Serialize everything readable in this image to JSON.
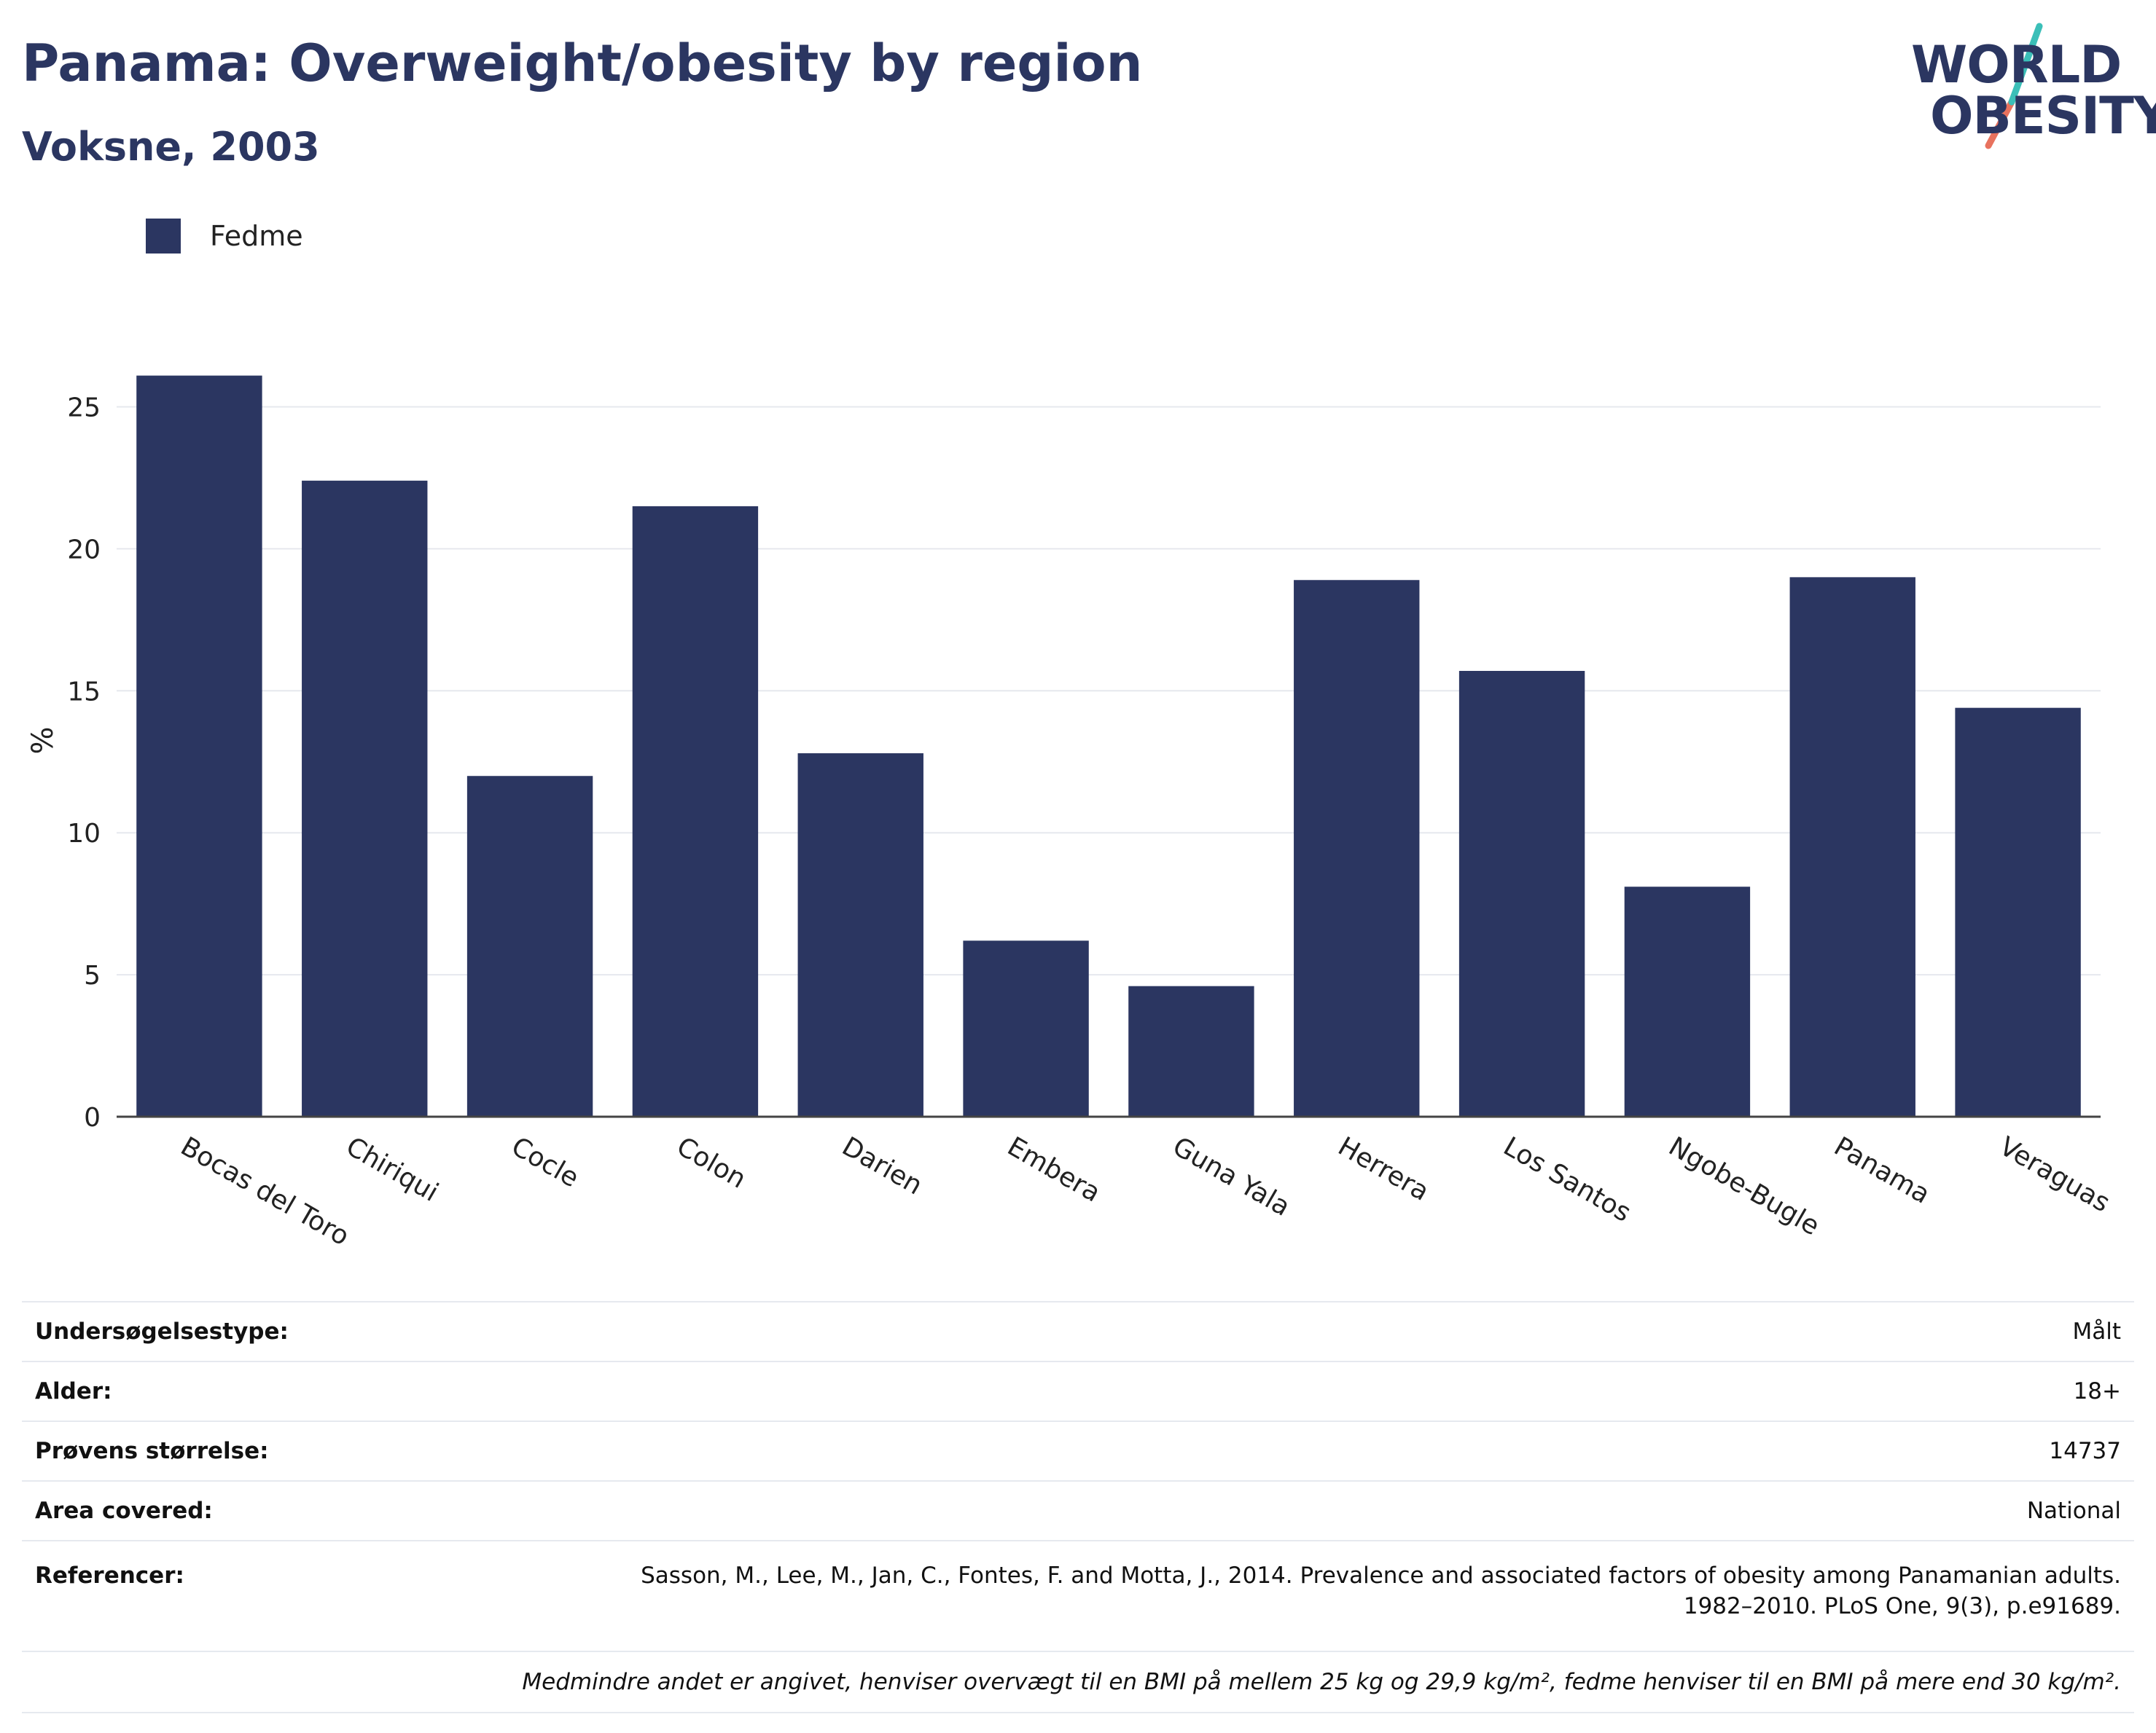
{
  "header": {
    "title": "Panama: Overweight/obesity by region",
    "subtitle": "Voksne, 2003"
  },
  "logo": {
    "line1": "WORLD",
    "line2": "OBESITY",
    "colors": {
      "text": "#2b3661",
      "slash_top": "#3bbfb8",
      "slash_bottom": "#e8725e"
    }
  },
  "legend": {
    "label": "Fedme",
    "color": "#2b3661"
  },
  "chart_data": {
    "type": "bar",
    "categories": [
      "Bocas del Toro",
      "Chiriqui",
      "Cocle",
      "Colon",
      "Darien",
      "Embera",
      "Guna Yala",
      "Herrera",
      "Los Santos",
      "Ngobe-Bugle",
      "Panama",
      "Veraguas"
    ],
    "series": [
      {
        "name": "Fedme",
        "values": [
          26.1,
          22.4,
          12.0,
          21.5,
          12.8,
          6.2,
          4.6,
          18.9,
          15.7,
          8.1,
          19.0,
          14.4
        ],
        "color": "#2b3661"
      }
    ],
    "ylabel": "%",
    "ylim": [
      0,
      26.5
    ],
    "yticks": [
      0,
      5,
      10,
      15,
      20,
      25
    ],
    "grid": true,
    "legend": "top-left"
  },
  "info": {
    "rows": [
      {
        "key": "Undersøgelsestype:",
        "value": "Målt"
      },
      {
        "key": "Alder:",
        "value": "18+"
      },
      {
        "key": "Prøvens størrelse:",
        "value": "14737"
      },
      {
        "key": "Area covered:",
        "value": "National"
      }
    ],
    "reference": {
      "key": "Referencer:",
      "line1": "Sasson, M., Lee, M., Jan, C., Fontes, F. and Motta, J., 2014. Prevalence and associated factors of obesity among Panamanian adults.",
      "line2": "1982–2010. PLoS One, 9(3), p.e91689."
    },
    "note": "Medmindre andet er angivet, henviser overvægt til en BMI på mellem 25 kg og 29,9 kg/m², fedme henviser til en BMI på mere end 30 kg/m²."
  }
}
